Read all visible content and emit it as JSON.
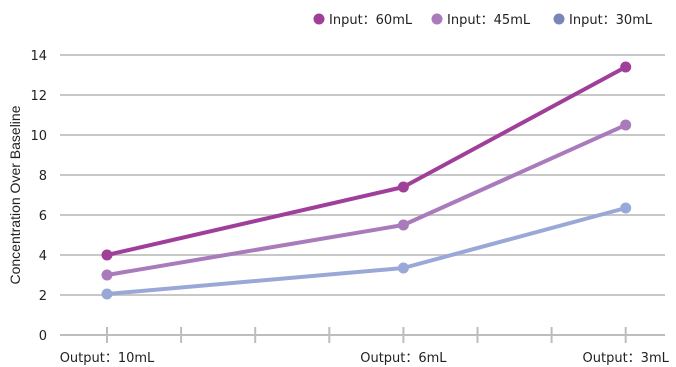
{
  "chart_data": {
    "type": "line",
    "title": "",
    "xlabel": "",
    "ylabel": "Concentration Over Baseline",
    "ylim": [
      0,
      14
    ],
    "yticks": [
      0,
      2,
      4,
      6,
      8,
      10,
      12,
      14
    ],
    "grid": true,
    "legend": "top-right",
    "x": [
      {
        "label": "Output：10mL",
        "pos": 0
      },
      {
        "label": "Output：6mL",
        "pos": 4
      },
      {
        "label": "Output：3mL",
        "pos": 7
      }
    ],
    "x_minor_ticks": [
      1,
      2,
      3,
      5,
      6
    ],
    "series": [
      {
        "name": "Input：60mL",
        "color": "#a03f9a",
        "values": [
          4.0,
          7.4,
          13.4
        ]
      },
      {
        "name": "Input：45mL",
        "color": "#a97bba",
        "values": [
          3.0,
          5.5,
          10.5
        ]
      },
      {
        "name": "Input：30mL",
        "color": "#99a8d6",
        "values": [
          2.05,
          3.35,
          6.35
        ]
      }
    ],
    "legend_colors": [
      "#a03f9a",
      "#a97bba",
      "#7b86b8"
    ]
  }
}
